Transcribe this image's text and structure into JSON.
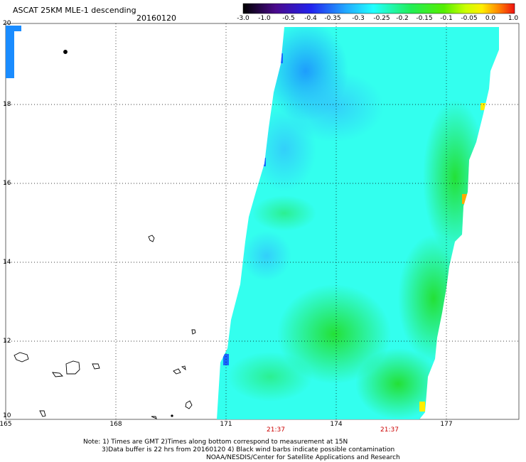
{
  "header": {
    "title": "ASCAT 25KM MLE-1 descending",
    "date": "20160120"
  },
  "colorbar": {
    "tick_labels": [
      "-3.0",
      "-1.0",
      "-0.5",
      "-0.4",
      "-0.35",
      "-0.3",
      "-0.25",
      "-0.2",
      "-0.15",
      "-0.1",
      "-0.05",
      "0.0",
      "1.0"
    ]
  },
  "axes": {
    "x_ticks": [
      "165",
      "168",
      "171",
      "174",
      "177"
    ],
    "y_ticks": [
      "20",
      "18",
      "16",
      "14",
      "12",
      "10"
    ]
  },
  "swath_times": [
    "21:37",
    "21:37"
  ],
  "footer": {
    "line1": "Note: 1) Times are GMT 2)Times along bottom correspond to measurement at 15N",
    "line2": "3)Data buffer is 22 hrs from 20160120 4) Black wind barbs indicate possible contamination",
    "line3": "NOAA/NESDIS/Center for Satellite Applications and Research"
  },
  "colors": {
    "swath_base": "#33ffee",
    "high_anomaly": "#22ee33",
    "low_anomaly": "#22aaff",
    "time_label": "#cc0000"
  }
}
